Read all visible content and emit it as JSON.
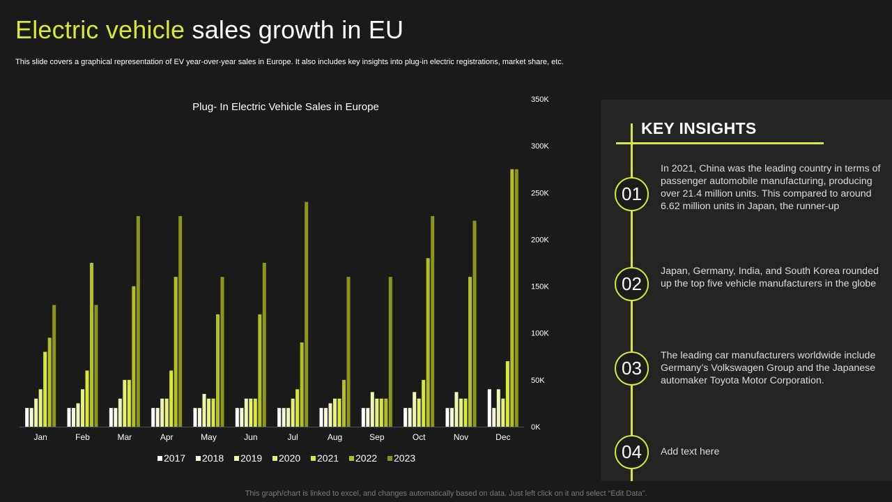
{
  "header": {
    "title_accent": "Electric vehicle",
    "title_rest": "sales growth in EU",
    "subtitle": "This slide covers a graphical representation of EV year-over-year sales in Europe. It also includes key insights into plug-in electric registrations, market share, etc."
  },
  "colors": {
    "accent": "#d7e83a",
    "background": "#1a1a1a",
    "panel": "#242424"
  },
  "chart_data": {
    "type": "bar",
    "title": "Plug- In Electric Vehicle Sales in Europe",
    "categories": [
      "Jan",
      "Feb",
      "Mar",
      "Apr",
      "May",
      "Jun",
      "Jul",
      "Aug",
      "Sep",
      "Oct",
      "Nov",
      "Dec"
    ],
    "ylim": [
      0,
      350000
    ],
    "yticks": [
      0,
      50000,
      100000,
      150000,
      200000,
      250000,
      300000,
      350000
    ],
    "ytick_labels": [
      "0K",
      "50K",
      "100K",
      "150K",
      "200K",
      "250K",
      "300K",
      "350K"
    ],
    "yaxis_side": "right",
    "legend_position": "bottom",
    "series": [
      {
        "name": "2017",
        "color": "#ffffff",
        "values": [
          20000,
          20000,
          20000,
          20000,
          20000,
          20000,
          20000,
          20000,
          20000,
          20000,
          20000,
          40000
        ]
      },
      {
        "name": "2018",
        "color": "#f6f8dc",
        "values": [
          20000,
          20000,
          20000,
          20000,
          20000,
          20000,
          20000,
          20000,
          20000,
          20000,
          20000,
          20000
        ]
      },
      {
        "name": "2019",
        "color": "#eef4b4",
        "values": [
          30000,
          25000,
          30000,
          30000,
          35000,
          30000,
          20000,
          25000,
          37000,
          37000,
          37000,
          40000
        ]
      },
      {
        "name": "2020",
        "color": "#e6f07e",
        "values": [
          40000,
          40000,
          50000,
          30000,
          30000,
          30000,
          30000,
          30000,
          30000,
          30000,
          30000,
          30000
        ]
      },
      {
        "name": "2021",
        "color": "#d7e83a",
        "values": [
          80000,
          60000,
          50000,
          60000,
          30000,
          30000,
          40000,
          30000,
          30000,
          50000,
          30000,
          70000
        ]
      },
      {
        "name": "2022",
        "color": "#b3c024",
        "values": [
          95000,
          175000,
          150000,
          160000,
          120000,
          120000,
          90000,
          50000,
          30000,
          180000,
          160000,
          275000
        ]
      },
      {
        "name": "2023",
        "color": "#8c961a",
        "values": [
          130000,
          130000,
          225000,
          225000,
          160000,
          175000,
          240000,
          160000,
          160000,
          225000,
          220000,
          275000
        ]
      }
    ]
  },
  "insights": {
    "title": "KEY INSIGHTS",
    "items": [
      {
        "num": "01",
        "text": "In 2021, China was the leading country in terms of passenger automobile manufacturing, producing over 21.4 million units. This compared to around 6.62 million units in Japan, the runner-up"
      },
      {
        "num": "02",
        "text": "Japan, Germany, India, and South Korea rounded up the top five vehicle manufacturers in the globe"
      },
      {
        "num": "03",
        "text": "The leading car manufacturers worldwide include Germany’s Volkswagen Group and the Japanese automaker Toyota Motor Corporation."
      },
      {
        "num": "04",
        "text": "Add text here"
      }
    ]
  },
  "footer": {
    "note": "This graph/chart is linked to excel, and changes automatically based on data. Just left click on it and select “Edit Data”."
  }
}
